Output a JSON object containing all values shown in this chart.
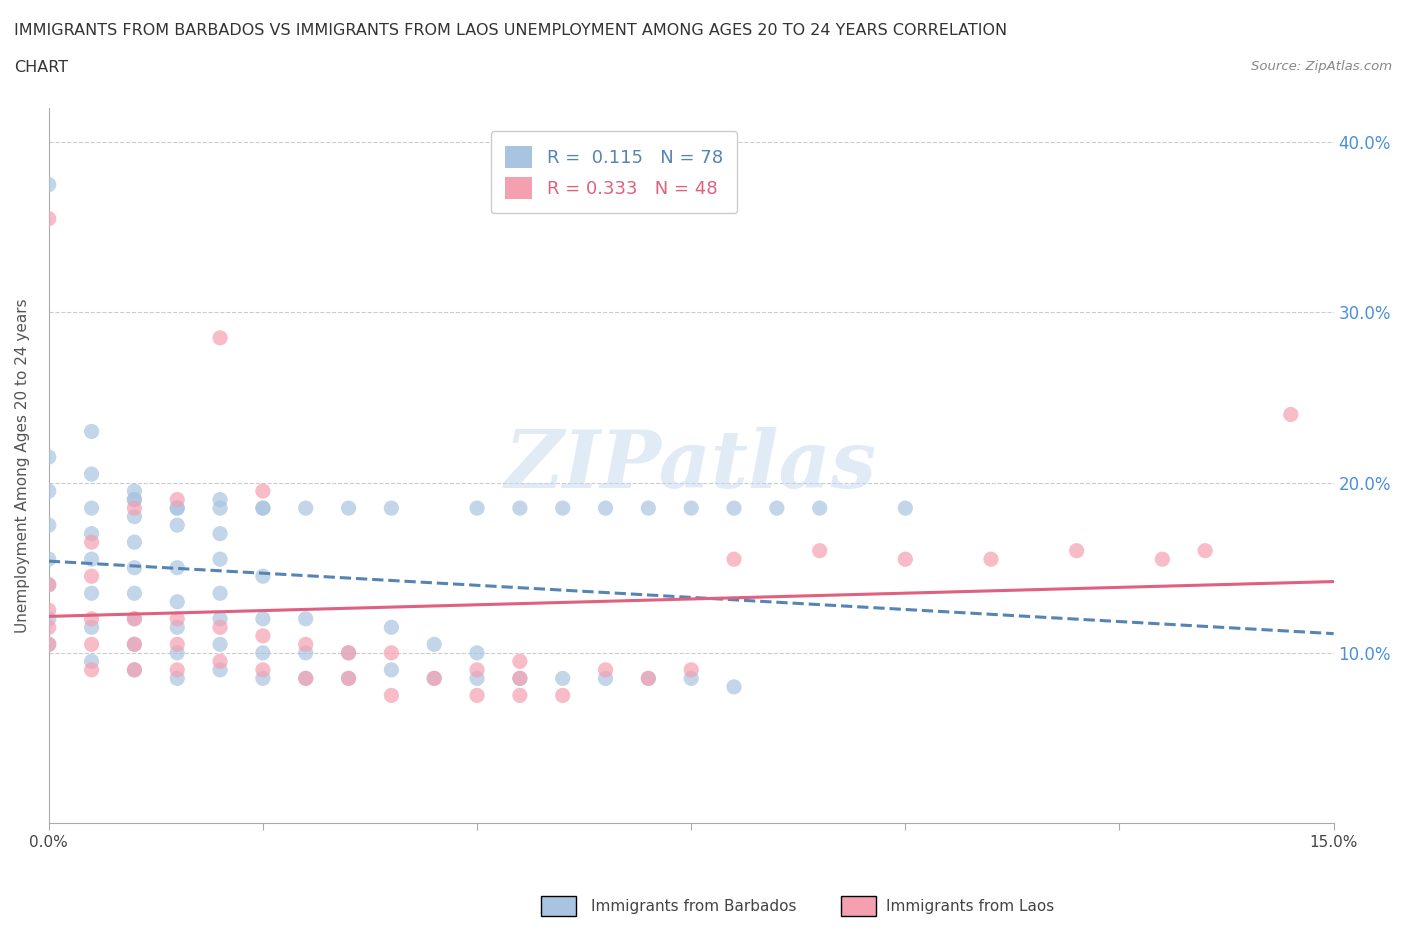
{
  "title_line1": "IMMIGRANTS FROM BARBADOS VS IMMIGRANTS FROM LAOS UNEMPLOYMENT AMONG AGES 20 TO 24 YEARS CORRELATION",
  "title_line2": "CHART",
  "source": "Source: ZipAtlas.com",
  "ylabel": "Unemployment Among Ages 20 to 24 years",
  "xlim": [
    0.0,
    0.15
  ],
  "ylim": [
    0.0,
    0.42
  ],
  "y_ticks_right": [
    0.1,
    0.2,
    0.3,
    0.4
  ],
  "y_tick_labels_right": [
    "10.0%",
    "20.0%",
    "30.0%",
    "40.0%"
  ],
  "grid_color": "#cccccc",
  "background_color": "#ffffff",
  "barbados_color": "#a8c4e0",
  "laos_color": "#f4a0b0",
  "barbados_R": 0.115,
  "barbados_N": 78,
  "laos_R": 0.333,
  "laos_N": 48,
  "watermark": "ZIPatlas",
  "barbados_scatter_x": [
    0.0,
    0.0,
    0.0,
    0.0,
    0.0,
    0.0,
    0.0,
    0.0,
    0.005,
    0.005,
    0.005,
    0.005,
    0.005,
    0.005,
    0.005,
    0.005,
    0.01,
    0.01,
    0.01,
    0.01,
    0.01,
    0.01,
    0.01,
    0.01,
    0.015,
    0.015,
    0.015,
    0.015,
    0.015,
    0.015,
    0.02,
    0.02,
    0.02,
    0.02,
    0.02,
    0.02,
    0.025,
    0.025,
    0.025,
    0.025,
    0.03,
    0.03,
    0.03,
    0.035,
    0.035,
    0.04,
    0.04,
    0.045,
    0.045,
    0.05,
    0.05,
    0.055,
    0.06,
    0.065,
    0.07,
    0.075,
    0.08,
    0.01,
    0.01,
    0.015,
    0.015,
    0.02,
    0.02,
    0.025,
    0.025,
    0.03,
    0.035,
    0.04,
    0.05,
    0.055,
    0.06,
    0.065,
    0.07,
    0.075,
    0.08,
    0.085,
    0.09,
    0.1
  ],
  "barbados_scatter_y": [
    0.105,
    0.12,
    0.14,
    0.155,
    0.175,
    0.195,
    0.215,
    0.375,
    0.095,
    0.115,
    0.135,
    0.155,
    0.17,
    0.185,
    0.205,
    0.23,
    0.09,
    0.105,
    0.12,
    0.135,
    0.15,
    0.165,
    0.18,
    0.195,
    0.085,
    0.1,
    0.115,
    0.13,
    0.15,
    0.175,
    0.09,
    0.105,
    0.12,
    0.135,
    0.155,
    0.17,
    0.085,
    0.1,
    0.12,
    0.145,
    0.085,
    0.1,
    0.12,
    0.085,
    0.1,
    0.09,
    0.115,
    0.085,
    0.105,
    0.085,
    0.1,
    0.085,
    0.085,
    0.085,
    0.085,
    0.085,
    0.08,
    0.19,
    0.19,
    0.185,
    0.185,
    0.19,
    0.185,
    0.185,
    0.185,
    0.185,
    0.185,
    0.185,
    0.185,
    0.185,
    0.185,
    0.185,
    0.185,
    0.185,
    0.185,
    0.185,
    0.185,
    0.185
  ],
  "laos_scatter_x": [
    0.0,
    0.0,
    0.0,
    0.0,
    0.0,
    0.005,
    0.005,
    0.005,
    0.005,
    0.005,
    0.01,
    0.01,
    0.01,
    0.01,
    0.015,
    0.015,
    0.015,
    0.015,
    0.02,
    0.02,
    0.02,
    0.025,
    0.025,
    0.025,
    0.03,
    0.03,
    0.035,
    0.035,
    0.04,
    0.04,
    0.045,
    0.05,
    0.05,
    0.055,
    0.055,
    0.055,
    0.06,
    0.065,
    0.07,
    0.075,
    0.08,
    0.09,
    0.1,
    0.11,
    0.12,
    0.13,
    0.135,
    0.145
  ],
  "laos_scatter_y": [
    0.105,
    0.115,
    0.125,
    0.14,
    0.355,
    0.09,
    0.105,
    0.12,
    0.145,
    0.165,
    0.09,
    0.105,
    0.12,
    0.185,
    0.09,
    0.105,
    0.12,
    0.19,
    0.095,
    0.115,
    0.285,
    0.09,
    0.11,
    0.195,
    0.085,
    0.105,
    0.085,
    0.1,
    0.075,
    0.1,
    0.085,
    0.075,
    0.09,
    0.075,
    0.085,
    0.095,
    0.075,
    0.09,
    0.085,
    0.09,
    0.155,
    0.16,
    0.155,
    0.155,
    0.16,
    0.155,
    0.16,
    0.24
  ],
  "barbados_trend_color": "#5585b5",
  "laos_trend_color": "#e06080",
  "barbados_trend_style": "--",
  "laos_trend_style": "-"
}
